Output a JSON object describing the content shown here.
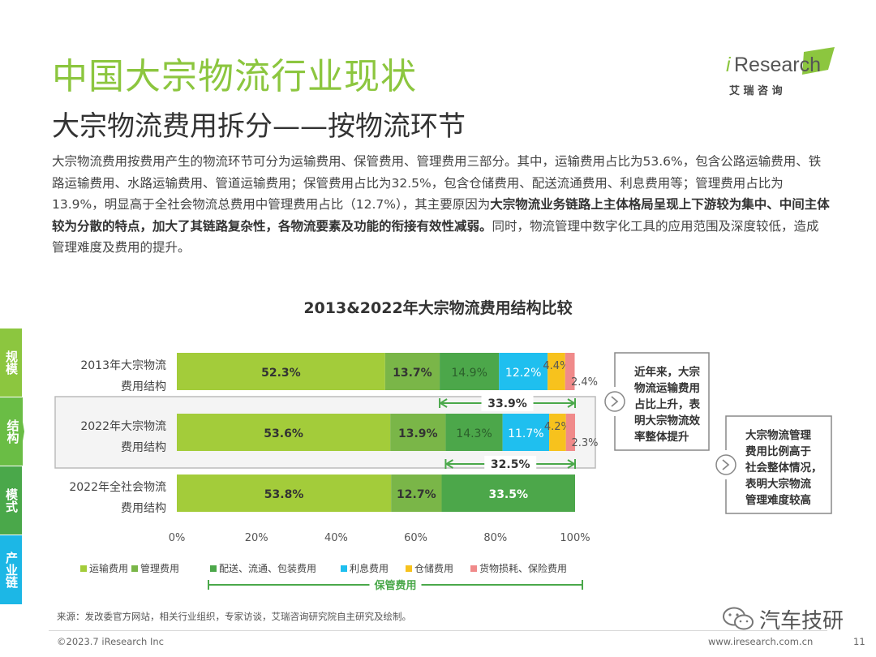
{
  "header": {
    "title": "中国大宗物流行业现状",
    "subtitle": "大宗物流费用拆分——按物流环节"
  },
  "logo": {
    "brand_prefix": "i",
    "brand_main": "Research",
    "brand_cn": "艾 瑞 咨 询",
    "accent": "#8cc63f"
  },
  "intro": {
    "segments": [
      {
        "text": "大宗物流费用按费用产生的物流环节可分为运输费用、保管费用、管理费用三部分。其中，运输费用占比为53.6%，包含公路运输费用、铁路运输费用、水路运输费用、管道运输费用；保管费用占比为32.5%，包含仓储费用、配送流通费用、利息费用等；管理费用占比为13.9%，明显高于全社会物流总费用中管理费用占比（12.7%），其主要原因为",
        "bold": false
      },
      {
        "text": "大宗物流业务链路上主体格局呈现上下游较为集中、中间主体较为分散的特点，加大了其链路复杂性，各物流要素及功能的衔接有效性减弱。",
        "bold": true
      },
      {
        "text": "同时，物流管理中数字化工具的应用范围及深度较低，造成管理难度及费用的提升。",
        "bold": false
      }
    ]
  },
  "side_nav": {
    "items": [
      {
        "label": "规模",
        "color": "#8cc63f",
        "active": false
      },
      {
        "label": "结构",
        "color": "#6abd45",
        "active": true
      },
      {
        "label": "模式",
        "color": "#4aa84a",
        "active": false
      },
      {
        "label": "产业链",
        "color": "#1cb7e6",
        "active": false
      }
    ]
  },
  "chart_data": {
    "type": "bar",
    "orientation": "horizontal",
    "stacked": true,
    "title": "2013&2022年大宗物流费用结构比较",
    "categories": [
      "2013年大宗物流费用结构",
      "2022年大宗物流费用结构",
      "2022年全社会物流费用结构"
    ],
    "category_lines": [
      [
        "2013年大宗物流",
        "费用结构"
      ],
      [
        "2022年大宗物流",
        "费用结构"
      ],
      [
        "2022年全社会物流",
        "费用结构"
      ]
    ],
    "series": [
      {
        "name": "运输费用",
        "color": "#a3cc3a",
        "values": [
          52.3,
          53.6,
          53.8
        ],
        "labels": [
          "52.3%",
          "53.6%",
          "53.8%"
        ]
      },
      {
        "name": "管理费用",
        "color": "#7ab648",
        "values": [
          13.7,
          13.9,
          12.7
        ],
        "labels": [
          "13.7%",
          "13.9%",
          "12.7%"
        ]
      },
      {
        "name": "配送、流通、包装费用",
        "color": "#4ca74a",
        "values": [
          14.9,
          14.3,
          33.5
        ],
        "labels": [
          "14.9%",
          "14.3%",
          "33.5%"
        ]
      },
      {
        "name": "利息费用",
        "color": "#1fbfef",
        "values": [
          12.2,
          11.7,
          0
        ],
        "labels": [
          "12.2%",
          "11.7%",
          ""
        ]
      },
      {
        "name": "仓储费用",
        "color": "#f7c21d",
        "values": [
          4.4,
          4.2,
          0
        ],
        "labels": [
          "4.4%",
          "4.2%",
          ""
        ]
      },
      {
        "name": "货物损耗、保险费用",
        "color": "#f08a8a",
        "values": [
          2.4,
          2.3,
          0
        ],
        "labels": [
          "2.4%",
          "2.3%",
          ""
        ]
      }
    ],
    "x_ticks": [
      "0%",
      "20%",
      "40%",
      "60%",
      "80%",
      "100%"
    ],
    "xlim": [
      0,
      100
    ],
    "brackets": [
      {
        "row": 0,
        "from": 66.0,
        "to": 100,
        "label": "33.9%"
      },
      {
        "row": 1,
        "from": 67.5,
        "to": 100,
        "label": "32.5%"
      }
    ],
    "legend_group_label": "保管费用",
    "legend_group_series": [
      2,
      3,
      4,
      5
    ],
    "highlight_row": 1,
    "callouts": [
      {
        "text_lines": [
          "近年来，大宗",
          "物流运输费用",
          "占比上升，表",
          "明大宗物流效",
          "率整体提升"
        ]
      },
      {
        "text_lines": [
          "大宗物流管理",
          "费用比例高于",
          "社会整体情况，",
          "表明大宗物流",
          "管理难度较高"
        ]
      }
    ],
    "grid": false,
    "legend_position": "bottom"
  },
  "footer": {
    "source": "来源：发改委官方网站，相关行业组织，专家访谈，艾瑞咨询研究院自主研究及绘制。",
    "copyright": "©2023.7 iResearch Inc",
    "site": "www.iresearch.com.cn",
    "page": "11",
    "watermark": "汽车技研"
  }
}
